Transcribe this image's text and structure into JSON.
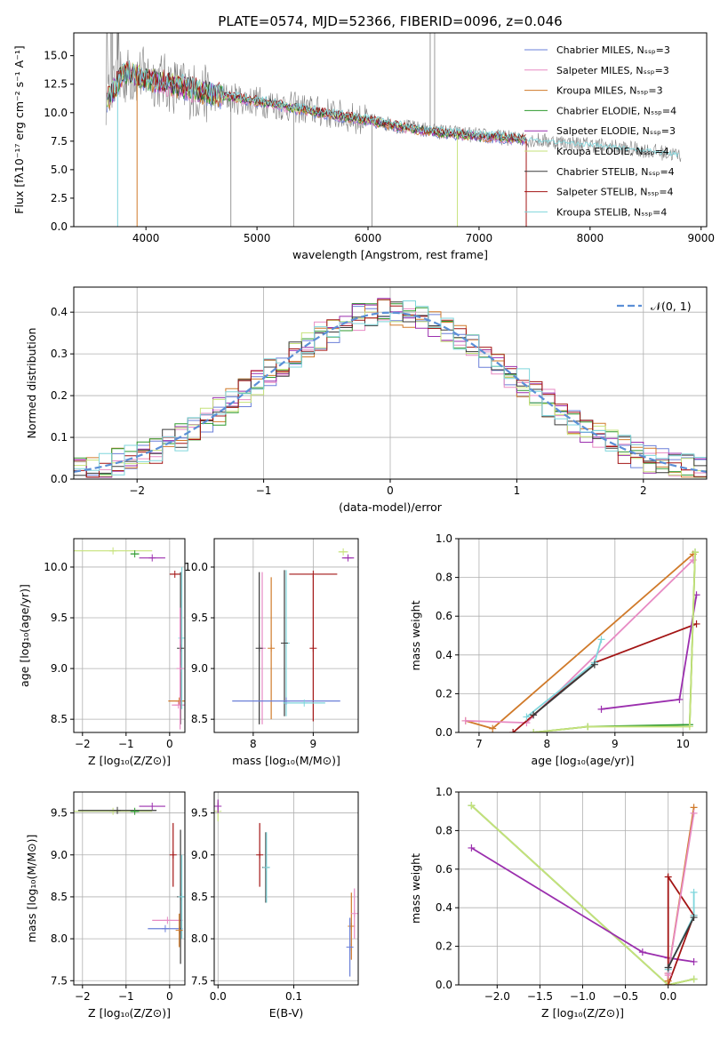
{
  "colors": {
    "chabrier_miles": "#6a7fd8",
    "salpeter_miles": "#e78ac3",
    "kroupa_miles": "#d07a2a",
    "chabrier_elodie": "#2e9a2e",
    "salpeter_elodie": "#9b2fae",
    "kroupa_elodie": "#c6e27a",
    "chabrier_stelib": "#3a3a3a",
    "salpeter_stelib": "#a31515",
    "kroupa_stelib": "#7fd6dc",
    "data": "#808080",
    "gauss": "#5b8fd6",
    "grid": "#b0b0b0"
  },
  "chart_data": [
    {
      "id": "spectrum",
      "type": "line",
      "title": "PLATE=0574, MJD=52366, FIBERID=0096, z=0.046",
      "xlabel": "wavelength [Angstrom, rest frame]",
      "ylabel": "Flux [fλ10⁻¹⁷ erg cm⁻² s⁻¹ A⁻¹]",
      "xlim": [
        3350,
        9050
      ],
      "ylim": [
        0,
        17
      ],
      "xticks": [
        "4000",
        "5000",
        "6000",
        "7000",
        "8000",
        "9000"
      ],
      "yticks": [
        "0.0",
        "2.5",
        "5.0",
        "7.5",
        "10.0",
        "12.5",
        "15.0"
      ],
      "grid": false,
      "legend_position": "upper-right",
      "legend": [
        {
          "name": "Chabrier MILES, Nₛₛₚ=3",
          "color": "#6a7fd8"
        },
        {
          "name": "Salpeter MILES, Nₛₛₚ=3",
          "color": "#e78ac3"
        },
        {
          "name": "Kroupa MILES, Nₛₛₚ=3",
          "color": "#d07a2a"
        },
        {
          "name": "Chabrier ELODIE, Nₛₛₚ=4",
          "color": "#2e9a2e"
        },
        {
          "name": "Salpeter ELODIE, Nₛₛₚ=3",
          "color": "#9b2fae"
        },
        {
          "name": "Kroupa ELODIE, Nₛₛₚ=4",
          "color": "#c6e27a"
        },
        {
          "name": "Chabrier STELIB, Nₛₛₚ=4",
          "color": "#3a3a3a"
        },
        {
          "name": "Salpeter STELIB, Nₛₛₚ=4",
          "color": "#a31515"
        },
        {
          "name": "Kroupa STELIB, Nₛₛₚ=4",
          "color": "#7fd6dc"
        }
      ],
      "data_trend": {
        "x": [
          3650,
          3800,
          4000,
          4300,
          4600,
          5000,
          5500,
          6000,
          6500,
          7000,
          7500,
          8000,
          8500,
          8800
        ],
        "y": [
          11,
          13.2,
          13.3,
          12.2,
          11.5,
          11.0,
          10.2,
          9.3,
          8.5,
          8.0,
          7.6,
          7.2,
          6.7,
          6.3
        ]
      },
      "model_trend": {
        "x": [
          3650,
          3800,
          4000,
          4300,
          4600,
          5000,
          5500,
          6000,
          6500,
          7000,
          7420
        ],
        "y": [
          11,
          13.6,
          13.0,
          12.3,
          11.6,
          11.0,
          10.1,
          9.3,
          8.4,
          7.9,
          7.7
        ]
      }
    },
    {
      "id": "residuals",
      "type": "line",
      "xlabel": "(data-model)/error",
      "ylabel": "Normed distribution",
      "xlim": [
        -2.5,
        2.5
      ],
      "ylim": [
        0,
        0.46
      ],
      "xticks": [
        "−2",
        "−1",
        "0",
        "1",
        "2"
      ],
      "yticks": [
        "0.0",
        "0.1",
        "0.2",
        "0.3",
        "0.4"
      ],
      "grid": true,
      "legend_position": "upper-right",
      "legend": [
        {
          "name": "𝒩(0, 1)",
          "color": "#5b8fd6"
        }
      ],
      "histogram_bin_width": 0.1,
      "gaussian": {
        "mean": 0,
        "sigma": 1
      }
    },
    {
      "id": "age_vs_Z",
      "type": "scatter",
      "xlabel": "Z [log₁₀(Z/Z⊙)]",
      "ylabel": "age  [log₁₀(age/yr)]",
      "xlim": [
        -2.2,
        0.35
      ],
      "ylim": [
        8.37,
        10.28
      ],
      "xticks": [
        "−2",
        "−1",
        "0"
      ],
      "yticks": [
        "8.5",
        "9.0",
        "9.5",
        "10.0"
      ],
      "grid": true,
      "points": [
        {
          "x": -1.3,
          "y": 10.16,
          "xerr": 0.9,
          "color": "#c6e27a"
        },
        {
          "x": -0.8,
          "y": 10.13,
          "xerr": 0.1,
          "color": "#2e9a2e"
        },
        {
          "x": -0.4,
          "y": 10.09,
          "xerr": 0.3,
          "color": "#9b2fae"
        },
        {
          "x": 0.12,
          "y": 9.93,
          "xerr": 0.12,
          "color": "#a31515"
        },
        {
          "x": 0.22,
          "y": 8.68,
          "xerr": 0.25,
          "color": "#d07a2a"
        },
        {
          "x": 0.2,
          "y": 8.64,
          "xerr": 0.15,
          "color": "#e78ac3"
        },
        {
          "x": 0.28,
          "y": 9.3,
          "yerr": 0.7,
          "color": "#7fd6dc"
        },
        {
          "x": 0.25,
          "y": 9.2,
          "yerr": 0.75,
          "color": "#3a3a3a"
        },
        {
          "x": 0.24,
          "y": 9.0,
          "yerr": 0.6,
          "color": "#e78ac3"
        }
      ]
    },
    {
      "id": "age_vs_mass",
      "type": "scatter",
      "xlabel": "mass [log₁₀(M/M⊙)]",
      "xlim": [
        7.35,
        9.75
      ],
      "ylim": [
        8.37,
        10.28
      ],
      "xticks": [
        "8",
        "9"
      ],
      "yticks": [
        "8.5",
        "9.0",
        "9.5",
        "10.0"
      ],
      "grid": true,
      "points": [
        {
          "x": 8.15,
          "y": 9.2,
          "yerr": 0.75,
          "color": "#e78ac3"
        },
        {
          "x": 8.1,
          "y": 9.2,
          "yerr": 0.75,
          "color": "#3a3a3a"
        },
        {
          "x": 8.3,
          "y": 9.2,
          "yerr": 0.7,
          "color": "#d07a2a"
        },
        {
          "x": 8.55,
          "y": 9.25,
          "yerr": 0.72,
          "color": "#7fd6dc"
        },
        {
          "x": 8.52,
          "y": 9.25,
          "yerr": 0.72,
          "color": "#3a3a3a"
        },
        {
          "x": 9.0,
          "y": 9.93,
          "xerr": 0.4,
          "color": "#a31515"
        },
        {
          "x": 9.0,
          "y": 9.2,
          "yerr": 0.72,
          "color": "#a31515"
        },
        {
          "x": 8.55,
          "y": 8.68,
          "xerr": 0.9,
          "color": "#6a7fd8"
        },
        {
          "x": 8.85,
          "y": 8.66,
          "xerr": 0.35,
          "color": "#7fd6dc"
        },
        {
          "x": 9.5,
          "y": 10.15,
          "xerr": 0.08,
          "color": "#c6e27a"
        },
        {
          "x": 9.58,
          "y": 10.09,
          "xerr": 0.1,
          "color": "#9b2fae"
        }
      ]
    },
    {
      "id": "weight_vs_age",
      "type": "line",
      "xlabel": "age  [log₁₀(age/yr)]",
      "ylabel": "mass weight",
      "xlim": [
        6.7,
        10.35
      ],
      "ylim": [
        0,
        1.0
      ],
      "xticks": [
        "7",
        "8",
        "9",
        "10"
      ],
      "yticks": [
        "0.0",
        "0.2",
        "0.4",
        "0.6",
        "0.8",
        "1.0"
      ],
      "grid": true,
      "series": [
        {
          "color": "#d07a2a",
          "x": [
            6.8,
            7.2,
            10.15
          ],
          "y": [
            0.06,
            0.02,
            0.92
          ]
        },
        {
          "color": "#e78ac3",
          "x": [
            6.8,
            7.7,
            10.15
          ],
          "y": [
            0.06,
            0.05,
            0.89
          ]
        },
        {
          "color": "#a31515",
          "x": [
            7.5,
            8.7,
            10.2
          ],
          "y": [
            0.0,
            0.36,
            0.56
          ]
        },
        {
          "color": "#7fd6dc",
          "x": [
            7.7,
            8.7,
            8.8
          ],
          "y": [
            0.08,
            0.36,
            0.48
          ]
        },
        {
          "color": "#3a3a3a",
          "x": [
            7.8,
            8.7
          ],
          "y": [
            0.09,
            0.35
          ]
        },
        {
          "color": "#9b2fae",
          "x": [
            8.8,
            9.95,
            10.2
          ],
          "y": [
            0.12,
            0.17,
            0.71
          ]
        },
        {
          "color": "#2e9a2e",
          "x": [
            7.8,
            8.6,
            10.1,
            10.18
          ],
          "y": [
            0.0,
            0.03,
            0.04,
            0.93
          ]
        },
        {
          "color": "#c6e27a",
          "x": [
            7.8,
            8.6,
            10.1,
            10.18
          ],
          "y": [
            0.0,
            0.03,
            0.03,
            0.93
          ]
        }
      ]
    },
    {
      "id": "mass_vs_Z",
      "type": "scatter",
      "xlabel": "Z [log₁₀(Z/Z⊙)]",
      "ylabel": "mass [log₁₀(M/M⊙)]",
      "xlim": [
        -2.2,
        0.35
      ],
      "ylim": [
        7.45,
        9.75
      ],
      "xticks": [
        "−2",
        "−1",
        "0"
      ],
      "yticks": [
        "7.5",
        "8.0",
        "8.5",
        "9.0",
        "9.5"
      ],
      "grid": true,
      "points": [
        {
          "x": -1.3,
          "y": 9.52,
          "xerr": 0.9,
          "color": "#c6e27a"
        },
        {
          "x": -1.2,
          "y": 9.53,
          "xerr": 0.9,
          "color": "#3a3a3a"
        },
        {
          "x": -0.8,
          "y": 9.52,
          "xerr": 0.1,
          "color": "#2e9a2e"
        },
        {
          "x": -0.4,
          "y": 9.58,
          "xerr": 0.3,
          "color": "#9b2fae"
        },
        {
          "x": 0.08,
          "y": 9.0,
          "yerr": 0.38,
          "color": "#a31515"
        },
        {
          "x": -0.05,
          "y": 8.22,
          "xerr": 0.35,
          "color": "#e78ac3"
        },
        {
          "x": -0.1,
          "y": 8.12,
          "xerr": 0.4,
          "color": "#6a7fd8"
        },
        {
          "x": 0.25,
          "y": 8.5,
          "yerr": 0.8,
          "color": "#3a3a3a"
        },
        {
          "x": 0.28,
          "y": 8.5,
          "yerr": 0.5,
          "color": "#7fd6dc"
        },
        {
          "x": 0.22,
          "y": 8.1,
          "yerr": 0.2,
          "color": "#d07a2a"
        }
      ]
    },
    {
      "id": "mass_vs_EBV",
      "type": "scatter",
      "xlabel": "E(B-V)",
      "xlim": [
        -0.005,
        0.185
      ],
      "ylim": [
        7.45,
        9.75
      ],
      "xticks": [
        "0.0",
        "0.1"
      ],
      "yticks": [
        "7.5",
        "8.0",
        "8.5",
        "9.0",
        "9.5"
      ],
      "grid": true,
      "points": [
        {
          "x": 0.0,
          "y": 9.52,
          "yerr": 0.12,
          "color": "#c6e27a"
        },
        {
          "x": 0.0,
          "y": 9.58,
          "yerr": 0.08,
          "color": "#9b2fae"
        },
        {
          "x": 0.055,
          "y": 9.0,
          "yerr": 0.38,
          "color": "#a31515"
        },
        {
          "x": 0.063,
          "y": 8.85,
          "yerr": 0.42,
          "color": "#3a3a3a"
        },
        {
          "x": 0.064,
          "y": 8.85,
          "yerr": 0.42,
          "color": "#7fd6dc"
        },
        {
          "x": 0.176,
          "y": 8.15,
          "yerr": 0.4,
          "color": "#d07a2a"
        },
        {
          "x": 0.18,
          "y": 8.3,
          "yerr": 0.3,
          "color": "#e78ac3"
        },
        {
          "x": 0.174,
          "y": 7.9,
          "yerr": 0.35,
          "color": "#6a7fd8"
        }
      ]
    },
    {
      "id": "weight_vs_Z",
      "type": "line",
      "xlabel": "Z [log₁₀(Z/Z⊙)]",
      "ylabel": "mass weight",
      "xlim": [
        -2.45,
        0.45
      ],
      "ylim": [
        0,
        1.0
      ],
      "xticks": [
        "−2.0",
        "−1.5",
        "−1.0",
        "−0.5",
        "0.0"
      ],
      "yticks": [
        "0.0",
        "0.2",
        "0.4",
        "0.6",
        "0.8",
        "1.0"
      ],
      "grid": true,
      "series": [
        {
          "color": "#2e9a2e",
          "x": [
            -2.3,
            0.0,
            0.3
          ],
          "y": [
            0.93,
            0.0,
            0.03
          ]
        },
        {
          "color": "#c6e27a",
          "x": [
            -2.3,
            0.0,
            0.3
          ],
          "y": [
            0.93,
            0.0,
            0.03
          ]
        },
        {
          "color": "#9b2fae",
          "x": [
            -2.3,
            -0.3,
            0.0,
            0.3
          ],
          "y": [
            0.71,
            0.17,
            0.14,
            0.12
          ]
        },
        {
          "color": "#a31515",
          "x": [
            0.0,
            0.0,
            0.3,
            0.0
          ],
          "y": [
            0.0,
            0.56,
            0.36,
            0.0
          ]
        },
        {
          "color": "#d07a2a",
          "x": [
            0.0,
            0.0,
            0.3
          ],
          "y": [
            0.02,
            0.06,
            0.92
          ]
        },
        {
          "color": "#e78ac3",
          "x": [
            0.0,
            0.0,
            0.3
          ],
          "y": [
            0.05,
            0.06,
            0.89
          ]
        },
        {
          "color": "#7fd6dc",
          "x": [
            0.0,
            0.0,
            0.3,
            0.3
          ],
          "y": [
            0.08,
            0.09,
            0.36,
            0.48
          ]
        },
        {
          "color": "#3a3a3a",
          "x": [
            0.0,
            0.3
          ],
          "y": [
            0.09,
            0.35
          ]
        }
      ]
    }
  ]
}
